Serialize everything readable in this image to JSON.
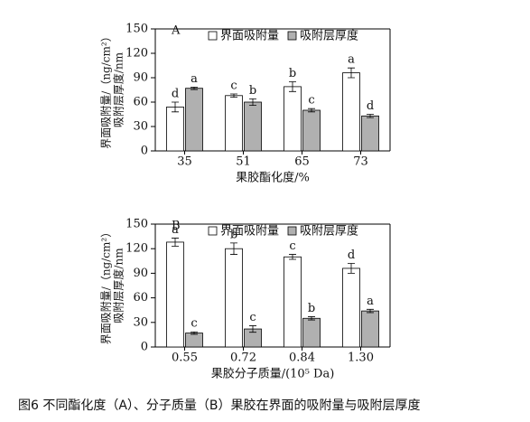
{
  "chart_data": [
    {
      "type": "bar",
      "panel": "A",
      "ylabel": [
        "界面吸附量/（ng/cm²）",
        "吸附层厚度/nm"
      ],
      "xlabel": "果胶酯化度/%",
      "categories": [
        "35",
        "51",
        "65",
        "73"
      ],
      "series": [
        {
          "name": "界面吸附量",
          "color": "#ffffff",
          "values": [
            54,
            68,
            79,
            96
          ],
          "errors": [
            6,
            2,
            6,
            6
          ],
          "letters": [
            "d",
            "c",
            "b",
            "a"
          ]
        },
        {
          "name": "吸附层厚度",
          "color": "#b0b0b0",
          "values": [
            77,
            60,
            50,
            43
          ],
          "errors": [
            1.5,
            4,
            2,
            2
          ],
          "letters": [
            "a",
            "b",
            "c",
            "d"
          ]
        }
      ],
      "ylim": [
        0,
        150
      ],
      "yticks": [
        0,
        30,
        60,
        90,
        120,
        150
      ]
    },
    {
      "type": "bar",
      "panel": "B",
      "ylabel": [
        "界面吸附量/（ng/cm²）",
        "吸附层厚度/nm"
      ],
      "xlabel": "果胶分子质量/(10⁵ Da)",
      "categories": [
        "0.55",
        "0.72",
        "0.84",
        "1.30"
      ],
      "series": [
        {
          "name": "界面吸附量",
          "color": "#ffffff",
          "values": [
            128,
            120,
            110,
            96
          ],
          "errors": [
            5,
            7,
            3,
            6
          ],
          "letters": [
            "a",
            "b",
            "c",
            "d"
          ]
        },
        {
          "name": "吸附层厚度",
          "color": "#b0b0b0",
          "values": [
            17,
            22,
            35,
            44
          ],
          "errors": [
            1.5,
            4,
            2,
            2
          ],
          "letters": [
            "c",
            "c",
            "b",
            "a"
          ]
        }
      ],
      "ylim": [
        0,
        150
      ],
      "yticks": [
        0,
        30,
        60,
        90,
        120,
        150
      ]
    }
  ],
  "caption": "图6 不同酯化度（A）、分子质量（B）果胶在界面的吸附量与吸附层厚度"
}
